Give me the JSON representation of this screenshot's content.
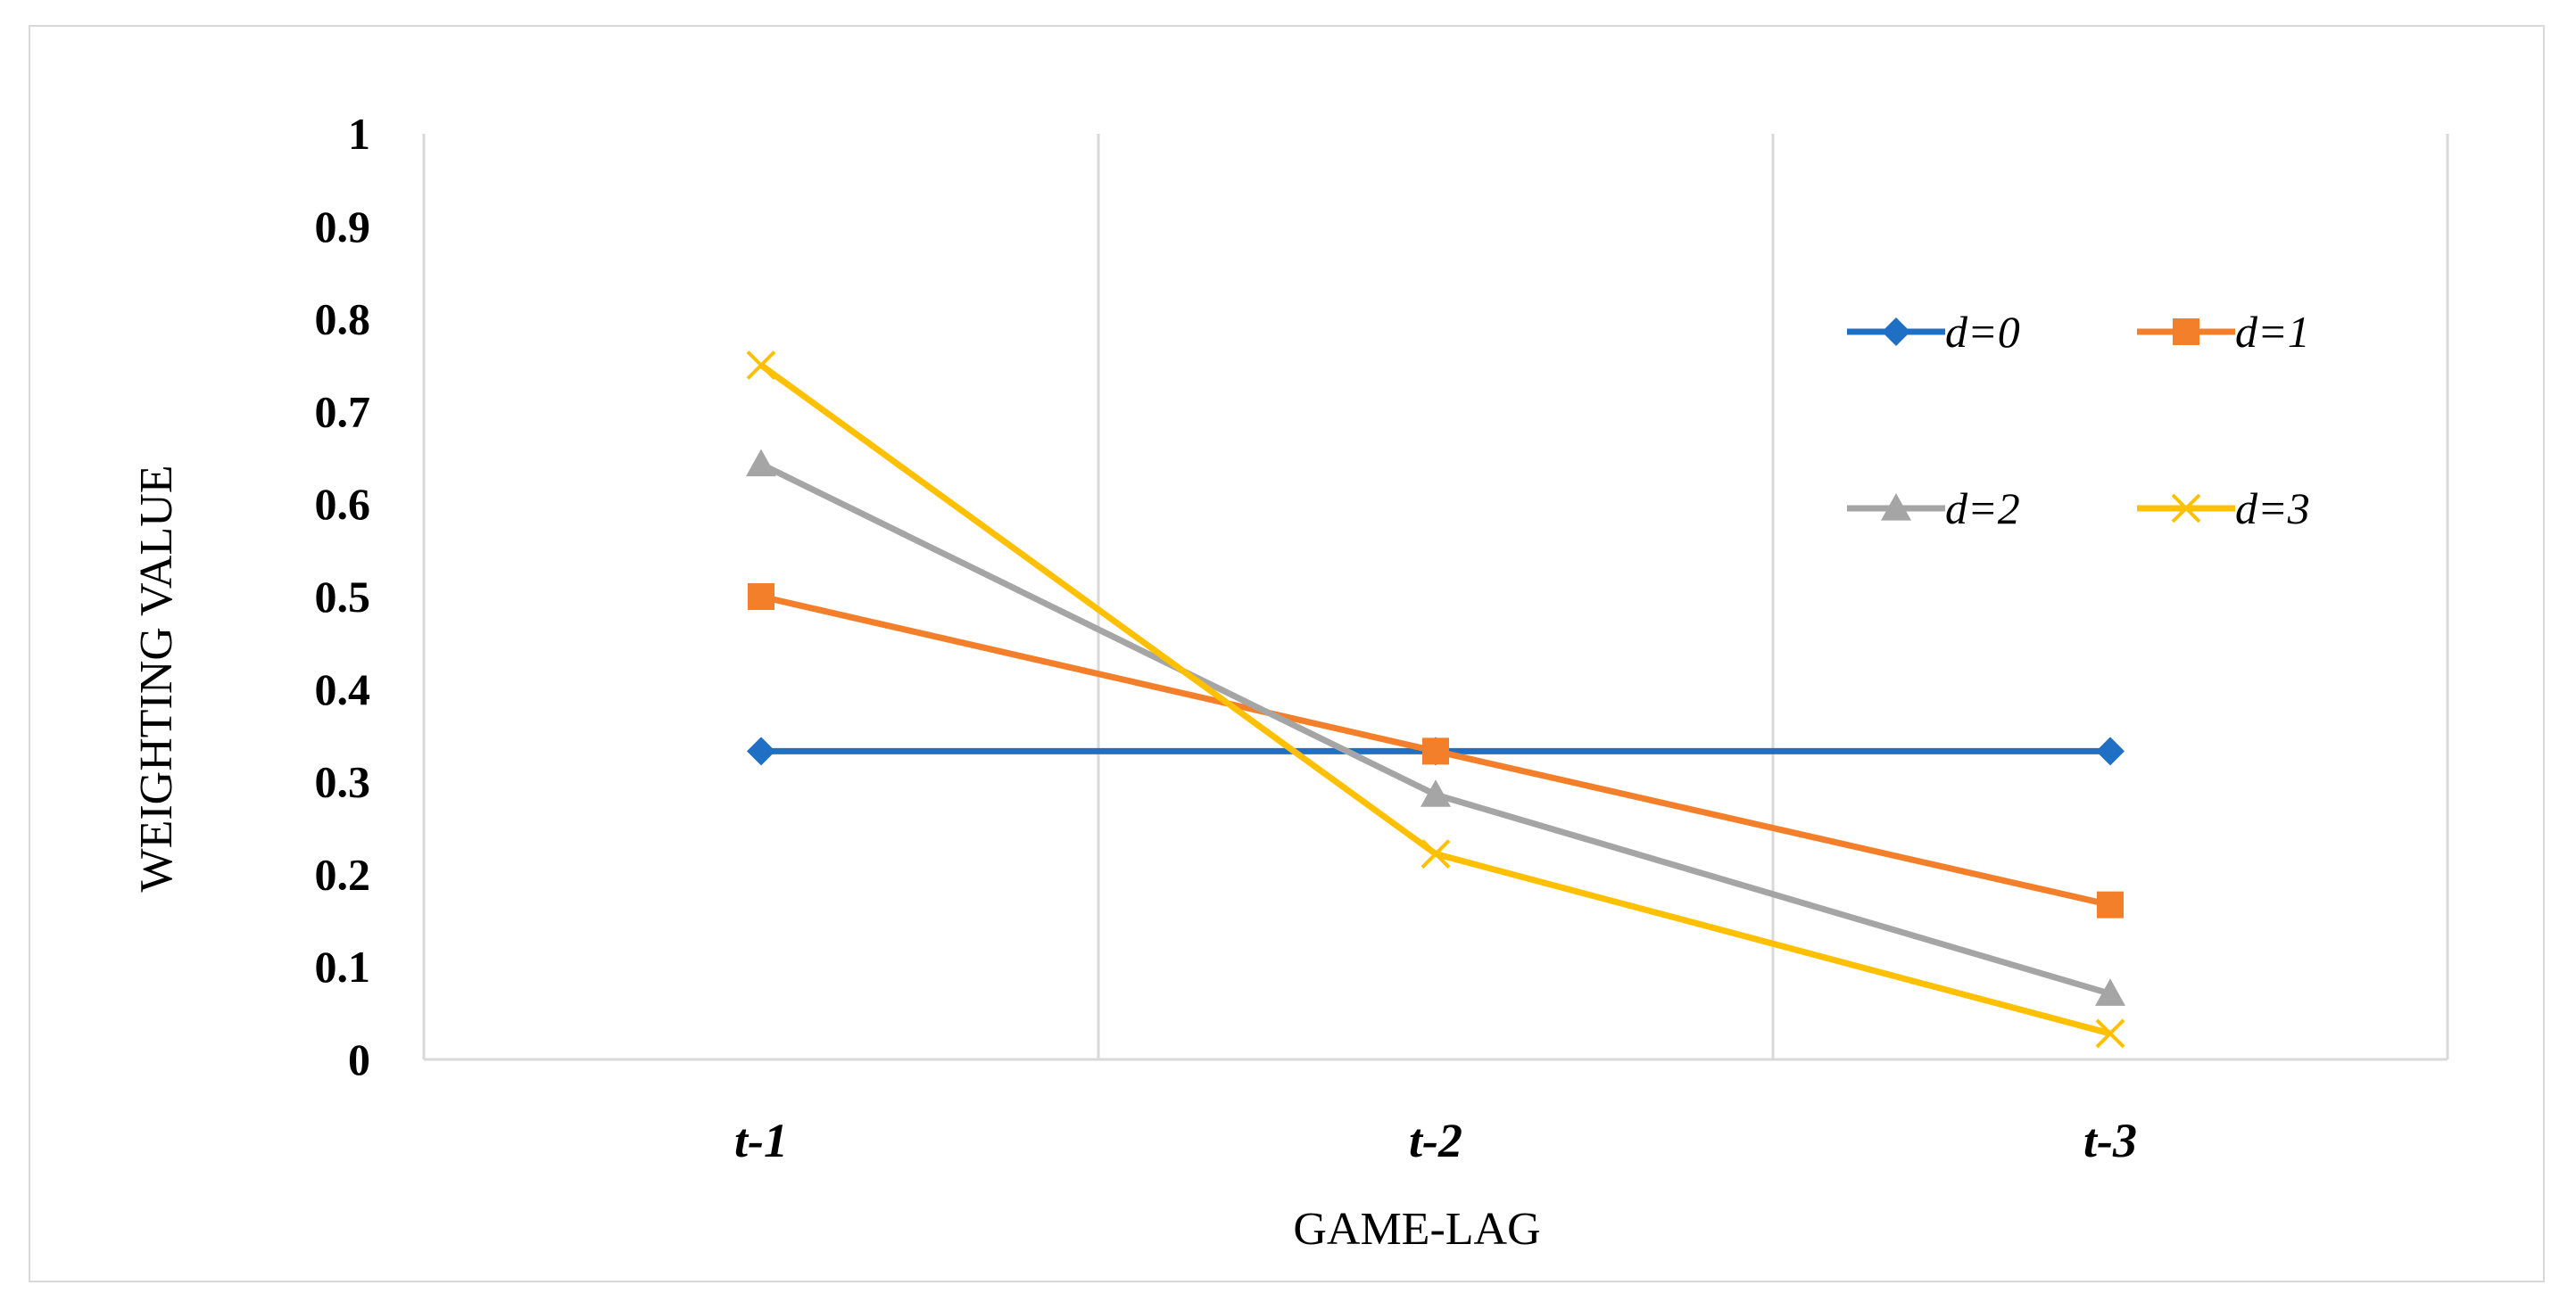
{
  "chart_data": {
    "type": "line",
    "title": "",
    "xlabel": "GAME-LAG",
    "ylabel": "WEIGHTING VALUE",
    "categories": [
      "t-1",
      "t-2",
      "t-3"
    ],
    "ylim": [
      0,
      1
    ],
    "yticks": [
      "0",
      "0.1",
      "0.2",
      "0.3",
      "0.4",
      "0.5",
      "0.6",
      "0.7",
      "0.8",
      "0.9",
      "1"
    ],
    "grid": "vertical",
    "legend_position": "top-right",
    "series": [
      {
        "name": "d=0",
        "values": [
          0.333,
          0.333,
          0.333
        ],
        "color": "#1f6fc5",
        "marker": "diamond"
      },
      {
        "name": "d=1",
        "values": [
          0.5,
          0.333,
          0.167
        ],
        "color": "#f47f2b",
        "marker": "square"
      },
      {
        "name": "d=2",
        "values": [
          0.643,
          0.286,
          0.071
        ],
        "color": "#a5a5a5",
        "marker": "triangle"
      },
      {
        "name": "d=3",
        "values": [
          0.75,
          0.222,
          0.028
        ],
        "color": "#ffc000",
        "marker": "x"
      }
    ]
  }
}
